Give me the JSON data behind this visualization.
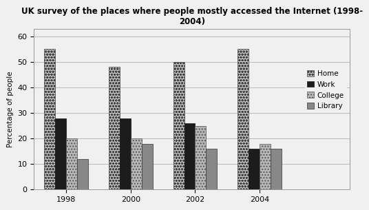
{
  "title": "UK survey of the places where people mostly accessed the Internet (1998-\n2004)",
  "years": [
    "1998",
    "2000",
    "2002",
    "2004"
  ],
  "categories": [
    "Home",
    "Work",
    "College",
    "Library"
  ],
  "values": {
    "Home": [
      55,
      48,
      50,
      55
    ],
    "Work": [
      28,
      28,
      26,
      16
    ],
    "College": [
      20,
      20,
      25,
      18
    ],
    "Library": [
      12,
      18,
      16,
      16
    ]
  },
  "ylabel": "Percentage of people",
  "ylim": [
    0,
    63
  ],
  "yticks": [
    0,
    10,
    20,
    30,
    40,
    50,
    60
  ],
  "bar_width": 0.17,
  "background_color": "#f0f0f0",
  "plot_bg": "#f0f0f0",
  "grid_color": "#aaaaaa",
  "title_fontsize": 8.5,
  "label_fontsize": 7.5,
  "tick_fontsize": 8,
  "legend_fontsize": 7.5,
  "hatch_styles": [
    "o.",
    ".",
    "..",
    "##"
  ],
  "face_colors": [
    "#c8c8c8",
    "#1a1a1a",
    "#c0c0c0",
    "#888888"
  ],
  "edge_colors": [
    "#555555",
    "#000000",
    "#555555",
    "#333333"
  ]
}
